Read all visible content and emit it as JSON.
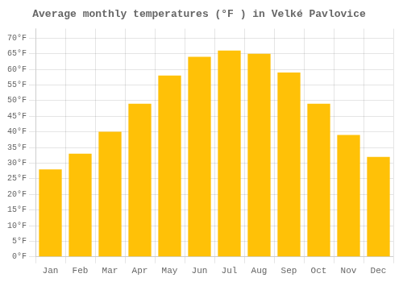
{
  "chart_data": {
    "type": "bar",
    "title": "Average monthly temperatures (°F ) in Velké Pavlovice",
    "categories": [
      "Jan",
      "Feb",
      "Mar",
      "Apr",
      "May",
      "Jun",
      "Jul",
      "Aug",
      "Sep",
      "Oct",
      "Nov",
      "Dec"
    ],
    "values": [
      28,
      33,
      40,
      49,
      58,
      64,
      66,
      65,
      59,
      49,
      39,
      32
    ],
    "color": "#FFC107",
    "ylim": [
      0,
      73
    ],
    "yticks": [
      {
        "value": 0,
        "label": "0°F"
      },
      {
        "value": 5,
        "label": "5°F"
      },
      {
        "value": 10,
        "label": "10°F"
      },
      {
        "value": 15,
        "label": "15°F"
      },
      {
        "value": 20,
        "label": "20°F"
      },
      {
        "value": 25,
        "label": "25°F"
      },
      {
        "value": 30,
        "label": "30°F"
      },
      {
        "value": 35,
        "label": "35°F"
      },
      {
        "value": 40,
        "label": "40°F"
      },
      {
        "value": 45,
        "label": "45°F"
      },
      {
        "value": 50,
        "label": "50°F"
      },
      {
        "value": 55,
        "label": "55°F"
      },
      {
        "value": 60,
        "label": "60°F"
      },
      {
        "value": 65,
        "label": "65°F"
      },
      {
        "value": 70,
        "label": "70°F"
      }
    ],
    "grid": true
  }
}
